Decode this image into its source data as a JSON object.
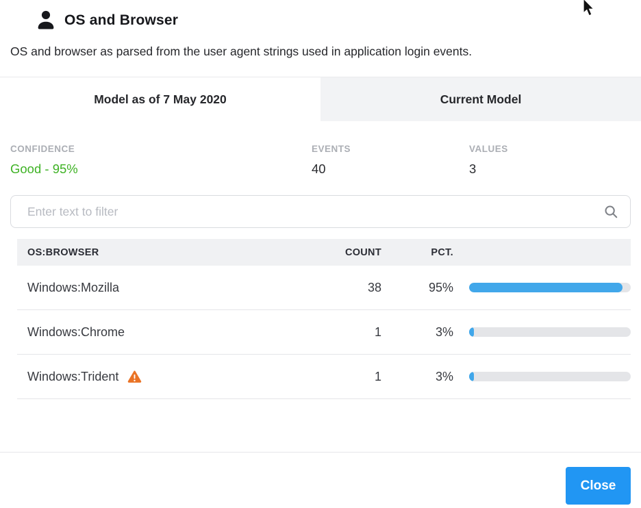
{
  "header": {
    "title": "OS and Browser",
    "description": "OS and browser as parsed from the user agent strings used in application login events."
  },
  "tabs": [
    {
      "label": "Model as of 7 May 2020",
      "active": true
    },
    {
      "label": "Current Model",
      "active": false
    }
  ],
  "stats": [
    {
      "label": "CONFIDENCE",
      "value": "Good - 95%"
    },
    {
      "label": "EVENTS",
      "value": "40"
    },
    {
      "label": "VALUES",
      "value": "3"
    }
  ],
  "filter": {
    "placeholder": "Enter text to filter"
  },
  "table": {
    "columns": [
      "OS:BROWSER",
      "COUNT",
      "PCT."
    ],
    "rows": [
      {
        "name": "Windows:Mozilla",
        "count": "38",
        "pct": "95%",
        "pct_value": 95,
        "warning": false
      },
      {
        "name": "Windows:Chrome",
        "count": "1",
        "pct": "3%",
        "pct_value": 3,
        "warning": false
      },
      {
        "name": "Windows:Trident",
        "count": "1",
        "pct": "3%",
        "pct_value": 3,
        "warning": true
      }
    ]
  },
  "footer": {
    "close_label": "Close"
  },
  "colors": {
    "bar_fill": "#41a7ea",
    "bar_track": "#e4e5e8",
    "confidence_green": "#3eb224",
    "warning_orange": "#ea7325",
    "button_blue": "#2196f3"
  }
}
